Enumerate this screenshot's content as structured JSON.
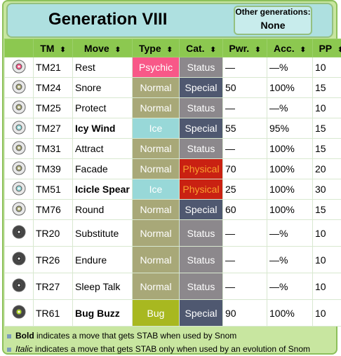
{
  "header": {
    "title": "Generation VIII",
    "other_label": "Other generations:",
    "other_value": "None"
  },
  "table": {
    "columns": [
      "TM",
      "Move",
      "Type",
      "Cat.",
      "Pwr.",
      "Acc.",
      "PP"
    ],
    "rows": [
      {
        "tm": "TM21",
        "move": "Rest",
        "type": "Psychic",
        "category": "Status",
        "power": "—",
        "accuracy": "—%",
        "pp": 10,
        "stab": false
      },
      {
        "tm": "TM24",
        "move": "Snore",
        "type": "Normal",
        "category": "Special",
        "power": 50,
        "accuracy": "100%",
        "pp": 15,
        "stab": false
      },
      {
        "tm": "TM25",
        "move": "Protect",
        "type": "Normal",
        "category": "Status",
        "power": "—",
        "accuracy": "—%",
        "pp": 10,
        "stab": false
      },
      {
        "tm": "TM27",
        "move": "Icy Wind",
        "type": "Ice",
        "category": "Special",
        "power": 55,
        "accuracy": "95%",
        "pp": 15,
        "stab": true
      },
      {
        "tm": "TM31",
        "move": "Attract",
        "type": "Normal",
        "category": "Status",
        "power": "—",
        "accuracy": "100%",
        "pp": 15,
        "stab": false
      },
      {
        "tm": "TM39",
        "move": "Facade",
        "type": "Normal",
        "category": "Physical",
        "power": 70,
        "accuracy": "100%",
        "pp": 20,
        "stab": false
      },
      {
        "tm": "TM51",
        "move": "Icicle Spear",
        "type": "Ice",
        "category": "Physical",
        "power": 25,
        "accuracy": "100%",
        "pp": 30,
        "stab": true
      },
      {
        "tm": "TM76",
        "move": "Round",
        "type": "Normal",
        "category": "Special",
        "power": 60,
        "accuracy": "100%",
        "pp": 15,
        "stab": false
      },
      {
        "tm": "TR20",
        "move": "Substitute",
        "type": "Normal",
        "category": "Status",
        "power": "—",
        "accuracy": "—%",
        "pp": 10,
        "stab": false
      },
      {
        "tm": "TR26",
        "move": "Endure",
        "type": "Normal",
        "category": "Status",
        "power": "—",
        "accuracy": "—%",
        "pp": 10,
        "stab": false
      },
      {
        "tm": "TR27",
        "move": "Sleep Talk",
        "type": "Normal",
        "category": "Status",
        "power": "—",
        "accuracy": "—%",
        "pp": 10,
        "stab": false
      },
      {
        "tm": "TR61",
        "move": "Bug Buzz",
        "type": "Bug",
        "category": "Special",
        "power": 90,
        "accuracy": "100%",
        "pp": 10,
        "stab": true
      }
    ]
  },
  "notes": [
    {
      "emphasis": "Bold",
      "style": "bold",
      "text": " indicates a move that gets STAB when used by Snom"
    },
    {
      "emphasis": "Italic",
      "style": "italic",
      "text": " indicates a move that gets STAB only when used by an evolution of Snom"
    }
  ]
}
